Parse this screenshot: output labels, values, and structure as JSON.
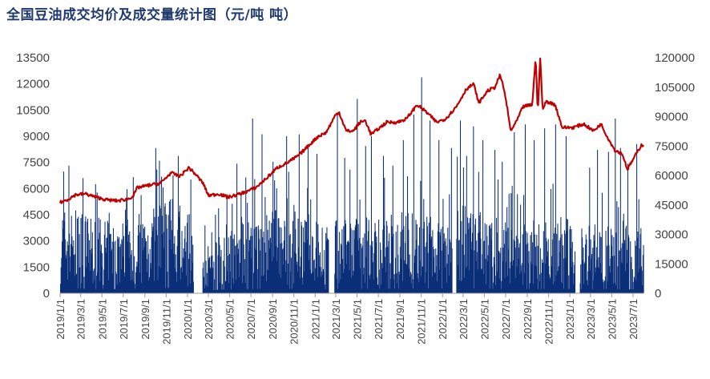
{
  "chart_data": {
    "type": "bar+line",
    "title": "全国豆油成交均价及成交量统计图（元/吨 吨）",
    "xlabel": "",
    "y_left_label": "",
    "y_right_label": "",
    "y_left_ticks": [
      "0",
      "1500",
      "3000",
      "4500",
      "6000",
      "7500",
      "9000",
      "10500",
      "12000",
      "13500"
    ],
    "y_right_ticks": [
      "0",
      "15000",
      "30000",
      "45000",
      "60000",
      "75000",
      "90000",
      "105000",
      "120000"
    ],
    "y_left_range": [
      0,
      13500
    ],
    "y_right_range": [
      0,
      120000
    ],
    "x_range": [
      "2019/1/1",
      "2023/7/31"
    ],
    "x_tick_labels": [
      "2019/1/1",
      "2019/3/1",
      "2019/5/1",
      "2019/7/1",
      "2019/9/1",
      "2019/11/1",
      "2020/1/1",
      "2020/3/1",
      "2020/5/1",
      "2020/7/1",
      "2020/9/1",
      "2020/11/1",
      "2021/1/1",
      "2021/3/1",
      "2021/5/1",
      "2021/7/1",
      "2021/9/1",
      "2021/11/1",
      "2022/1/1",
      "2022/3/1",
      "2022/5/1",
      "2022/7/1",
      "2022/9/1",
      "2022/11/1",
      "2023/1/1",
      "2023/3/1",
      "2023/5/1",
      "2023/7/1"
    ],
    "grid": false,
    "legend": "none",
    "series": [
      {
        "kind": "line",
        "axis": "left",
        "color": "#c00000",
        "points": [
          [
            "2019/1/1",
            5200
          ],
          [
            "2019/1/20",
            5350
          ],
          [
            "2019/2/15",
            5650
          ],
          [
            "2019/3/15",
            5700
          ],
          [
            "2019/4/15",
            5500
          ],
          [
            "2019/5/15",
            5350
          ],
          [
            "2019/6/15",
            5300
          ],
          [
            "2019/7/15",
            5400
          ],
          [
            "2019/7/31",
            5600
          ],
          [
            "2019/8/10",
            6050
          ],
          [
            "2019/9/15",
            6200
          ],
          [
            "2019/10/15",
            6300
          ],
          [
            "2019/11/15",
            6900
          ],
          [
            "2019/12/10",
            6700
          ],
          [
            "2020/1/5",
            7200
          ],
          [
            "2020/1/25",
            6800
          ],
          [
            "2020/2/15",
            6300
          ],
          [
            "2020/3/1",
            5600
          ],
          [
            "2020/4/1",
            5700
          ],
          [
            "2020/4/25",
            5500
          ],
          [
            "2020/5/15",
            5600
          ],
          [
            "2020/6/15",
            5800
          ],
          [
            "2020/7/15",
            6050
          ],
          [
            "2020/8/15",
            6600
          ],
          [
            "2020/9/15",
            7200
          ],
          [
            "2020/10/15",
            7500
          ],
          [
            "2020/11/15",
            7900
          ],
          [
            "2020/12/10",
            8400
          ],
          [
            "2021/1/10",
            9000
          ],
          [
            "2021/2/1",
            9200
          ],
          [
            "2021/2/28",
            10200
          ],
          [
            "2021/3/10",
            10400
          ],
          [
            "2021/3/31",
            9300
          ],
          [
            "2021/4/20",
            9300
          ],
          [
            "2021/5/10",
            9800
          ],
          [
            "2021/5/25",
            9900
          ],
          [
            "2021/6/10",
            9100
          ],
          [
            "2021/6/30",
            9400
          ],
          [
            "2021/7/25",
            9800
          ],
          [
            "2021/8/25",
            9800
          ],
          [
            "2021/9/20",
            10000
          ],
          [
            "2021/10/20",
            10800
          ],
          [
            "2021/11/15",
            10400
          ],
          [
            "2021/12/15",
            9800
          ],
          [
            "2022/1/10",
            10000
          ],
          [
            "2022/2/10",
            10700
          ],
          [
            "2022/3/10",
            11700
          ],
          [
            "2022/3/31",
            12000
          ],
          [
            "2022/4/15",
            10900
          ],
          [
            "2022/5/10",
            11600
          ],
          [
            "2022/5/31",
            11800
          ],
          [
            "2022/6/15",
            12500
          ],
          [
            "2022/6/25",
            11800
          ],
          [
            "2022/7/5",
            10700
          ],
          [
            "2022/7/15",
            9300
          ],
          [
            "2022/7/31",
            9800
          ],
          [
            "2022/8/20",
            10700
          ],
          [
            "2022/9/15",
            10800
          ],
          [
            "2022/9/25",
            13500
          ],
          [
            "2022/10/1",
            10400
          ],
          [
            "2022/10/8",
            13500
          ],
          [
            "2022/10/15",
            10500
          ],
          [
            "2022/10/25",
            11000
          ],
          [
            "2022/11/20",
            10800
          ],
          [
            "2022/12/10",
            9500
          ],
          [
            "2023/1/10",
            9500
          ],
          [
            "2023/2/10",
            9700
          ],
          [
            "2023/3/10",
            9300
          ],
          [
            "2023/3/31",
            9700
          ],
          [
            "2023/4/20",
            8900
          ],
          [
            "2023/5/10",
            8200
          ],
          [
            "2023/5/31",
            8000
          ],
          [
            "2023/6/15",
            7100
          ],
          [
            "2023/7/5",
            7800
          ],
          [
            "2023/7/25",
            8500
          ]
        ]
      },
      {
        "kind": "bar",
        "axis": "right",
        "color": "#0b2f78",
        "baseline": [
          [
            "2019/1/1",
            32000
          ],
          [
            "2019/6/1",
            26000
          ],
          [
            "2019/12/1",
            35000
          ],
          [
            "2020/1/25",
            12000
          ],
          [
            "2020/4/1",
            23000
          ],
          [
            "2020/9/1",
            30000
          ],
          [
            "2021/1/1",
            26000
          ],
          [
            "2021/6/1",
            28000
          ],
          [
            "2021/11/1",
            30000
          ],
          [
            "2022/3/1",
            32000
          ],
          [
            "2022/8/1",
            25000
          ],
          [
            "2022/12/1",
            28000
          ],
          [
            "2023/5/1",
            26000
          ],
          [
            "2023/7/31",
            24000
          ]
        ],
        "spikes": [
          [
            "2019/1/10",
            62000
          ],
          [
            "2019/1/25",
            65000
          ],
          [
            "2019/3/20",
            38000
          ],
          [
            "2019/5/20",
            41000
          ],
          [
            "2019/7/10",
            53000
          ],
          [
            "2019/8/20",
            50000
          ],
          [
            "2019/10/1",
            74000
          ],
          [
            "2019/11/20",
            60000
          ],
          [
            "2019/12/5",
            70000
          ],
          [
            "2020/1/10",
            58000
          ],
          [
            "2020/3/20",
            40000
          ],
          [
            "2020/4/20",
            35000
          ],
          [
            "2020/5/20",
            66000
          ],
          [
            "2020/6/15",
            59000
          ],
          [
            "2020/7/5",
            89000
          ],
          [
            "2020/8/1",
            81000
          ],
          [
            "2020/9/1",
            67000
          ],
          [
            "2020/10/10",
            80000
          ],
          [
            "2020/11/15",
            81000
          ],
          [
            "2020/12/10",
            76000
          ],
          [
            "2021/1/5",
            71000
          ],
          [
            "2021/2/10",
            70000
          ],
          [
            "2021/3/5",
            91000
          ],
          [
            "2021/3/25",
            69000
          ],
          [
            "2021/4/10",
            63000
          ],
          [
            "2021/5/1",
            99000
          ],
          [
            "2021/5/25",
            75000
          ],
          [
            "2021/6/10",
            80000
          ],
          [
            "2021/7/15",
            70000
          ],
          [
            "2021/8/10",
            65000
          ],
          [
            "2021/9/10",
            78000
          ],
          [
            "2021/10/10",
            91000
          ],
          [
            "2021/11/1",
            110000
          ],
          [
            "2021/11/25",
            88000
          ],
          [
            "2021/12/20",
            78000
          ],
          [
            "2022/1/25",
            74000
          ],
          [
            "2022/2/20",
            88000
          ],
          [
            "2022/3/10",
            70000
          ],
          [
            "2022/3/30",
            85000
          ],
          [
            "2022/4/25",
            78000
          ],
          [
            "2022/5/30",
            73000
          ],
          [
            "2022/6/20",
            67000
          ],
          [
            "2022/7/25",
            82000
          ],
          [
            "2022/8/25",
            86000
          ],
          [
            "2022/9/20",
            78000
          ],
          [
            "2022/10/20",
            84000
          ],
          [
            "2022/11/20",
            86000
          ],
          [
            "2022/12/20",
            80000
          ],
          [
            "2023/1/20",
            81000
          ],
          [
            "2023/2/25",
            64000
          ],
          [
            "2023/3/20",
            73000
          ],
          [
            "2023/4/20",
            72000
          ],
          [
            "2023/5/10",
            89000
          ],
          [
            "2023/5/25",
            74000
          ],
          [
            "2023/6/15",
            66000
          ],
          [
            "2023/7/10",
            76000
          ]
        ],
        "gaps": [
          [
            "2020/1/18",
            "2020/2/12"
          ],
          [
            "2021/2/8",
            "2021/2/24"
          ],
          [
            "2022/1/28",
            "2022/2/8"
          ],
          [
            "2023/1/15",
            "2023/1/29"
          ]
        ]
      }
    ]
  }
}
